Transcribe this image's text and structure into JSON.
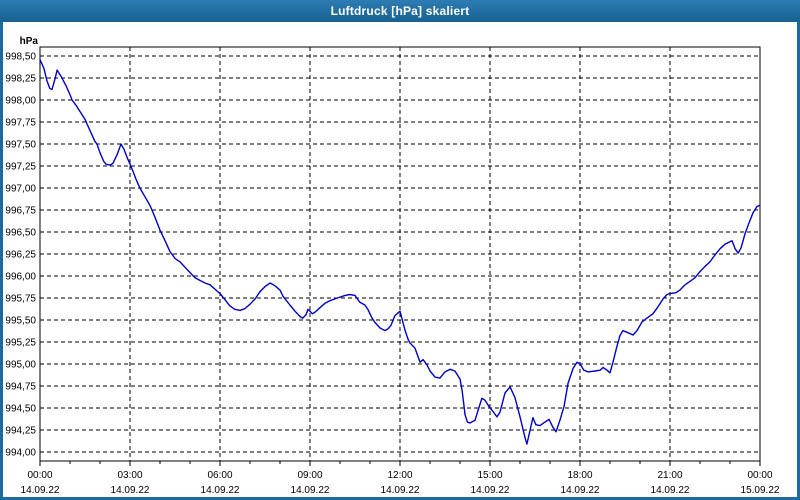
{
  "window": {
    "title": "Luftdruck [hPa] skaliert"
  },
  "colors": {
    "titlebar_blue": "#1d6a9e",
    "border_blue": "#1d6a9e",
    "plot_background": "#ffffff",
    "grid_color": "#000000",
    "line_color": "#0000c8",
    "text_color": "#000000",
    "title_text_color": "#ffffff"
  },
  "chart_data": {
    "type": "line",
    "title": "Luftdruck [hPa] skaliert",
    "unit_label": "hPa",
    "grid": "dashed",
    "legend": "none",
    "y_axis": {
      "min": 994.0,
      "max": 998.5,
      "step": 0.25,
      "tick_labels": [
        "998,50",
        "998,25",
        "998,00",
        "997,75",
        "997,50",
        "997,25",
        "997,00",
        "996,75",
        "996,50",
        "996,25",
        "996,00",
        "995,75",
        "995,50",
        "995,25",
        "995,00",
        "994,75",
        "994,50",
        "994,25",
        "994,00"
      ]
    },
    "x_axis": {
      "min_hours": 0,
      "max_hours": 24,
      "major_step_hours": 3,
      "minor_step_hours": 1,
      "tick_labels": [
        {
          "time": "00:00",
          "date": "14.09.22"
        },
        {
          "time": "03:00",
          "date": "14.09.22"
        },
        {
          "time": "06:00",
          "date": "14.09.22"
        },
        {
          "time": "09:00",
          "date": "14.09.22"
        },
        {
          "time": "12:00",
          "date": "14.09.22"
        },
        {
          "time": "15:00",
          "date": "14.09.22"
        },
        {
          "time": "18:00",
          "date": "14.09.22"
        },
        {
          "time": "21:00",
          "date": "14.09.22"
        },
        {
          "time": "00:00",
          "date": "15.09.22"
        }
      ]
    },
    "series": [
      {
        "name": "Luftdruck",
        "points": [
          [
            0.0,
            998.46
          ],
          [
            0.13,
            998.36
          ],
          [
            0.23,
            998.22
          ],
          [
            0.33,
            998.13
          ],
          [
            0.4,
            998.12
          ],
          [
            0.5,
            998.24
          ],
          [
            0.57,
            998.34
          ],
          [
            0.7,
            998.27
          ],
          [
            0.87,
            998.16
          ],
          [
            1.0,
            998.06
          ],
          [
            1.07,
            998.0
          ],
          [
            1.2,
            997.94
          ],
          [
            1.33,
            997.87
          ],
          [
            1.5,
            997.78
          ],
          [
            1.67,
            997.65
          ],
          [
            1.83,
            997.53
          ],
          [
            1.9,
            997.5
          ],
          [
            2.0,
            997.4
          ],
          [
            2.13,
            997.3
          ],
          [
            2.2,
            997.27
          ],
          [
            2.33,
            997.26
          ],
          [
            2.43,
            997.28
          ],
          [
            2.57,
            997.38
          ],
          [
            2.7,
            997.5
          ],
          [
            2.8,
            997.44
          ],
          [
            2.9,
            997.35
          ],
          [
            3.0,
            997.27
          ],
          [
            3.1,
            997.19
          ],
          [
            3.2,
            997.1
          ],
          [
            3.33,
            997.0
          ],
          [
            3.5,
            996.9
          ],
          [
            3.67,
            996.8
          ],
          [
            3.83,
            996.67
          ],
          [
            4.0,
            996.52
          ],
          [
            4.17,
            996.4
          ],
          [
            4.33,
            996.28
          ],
          [
            4.5,
            996.2
          ],
          [
            4.67,
            996.16
          ],
          [
            4.83,
            996.1
          ],
          [
            5.0,
            996.04
          ],
          [
            5.17,
            995.98
          ],
          [
            5.33,
            995.95
          ],
          [
            5.5,
            995.92
          ],
          [
            5.67,
            995.9
          ],
          [
            5.9,
            995.83
          ],
          [
            6.0,
            995.8
          ],
          [
            6.17,
            995.73
          ],
          [
            6.33,
            995.66
          ],
          [
            6.5,
            995.62
          ],
          [
            6.67,
            995.61
          ],
          [
            6.83,
            995.63
          ],
          [
            7.0,
            995.68
          ],
          [
            7.17,
            995.74
          ],
          [
            7.33,
            995.82
          ],
          [
            7.5,
            995.88
          ],
          [
            7.67,
            995.92
          ],
          [
            7.83,
            995.89
          ],
          [
            8.0,
            995.84
          ],
          [
            8.1,
            995.77
          ],
          [
            8.33,
            995.67
          ],
          [
            8.5,
            995.6
          ],
          [
            8.67,
            995.54
          ],
          [
            8.75,
            995.52
          ],
          [
            8.87,
            995.56
          ],
          [
            8.93,
            995.62
          ],
          [
            9.0,
            995.6
          ],
          [
            9.08,
            995.57
          ],
          [
            9.17,
            995.59
          ],
          [
            9.33,
            995.64
          ],
          [
            9.5,
            995.69
          ],
          [
            9.67,
            995.72
          ],
          [
            9.83,
            995.74
          ],
          [
            10.0,
            995.76
          ],
          [
            10.17,
            995.78
          ],
          [
            10.33,
            995.79
          ],
          [
            10.5,
            995.78
          ],
          [
            10.6,
            995.73
          ],
          [
            10.67,
            995.7
          ],
          [
            10.83,
            995.67
          ],
          [
            10.93,
            995.62
          ],
          [
            11.07,
            995.52
          ],
          [
            11.17,
            995.47
          ],
          [
            11.33,
            995.41
          ],
          [
            11.5,
            995.38
          ],
          [
            11.6,
            995.4
          ],
          [
            11.7,
            995.44
          ],
          [
            11.83,
            995.55
          ],
          [
            12.0,
            995.6
          ],
          [
            12.17,
            995.38
          ],
          [
            12.27,
            995.28
          ],
          [
            12.33,
            995.24
          ],
          [
            12.5,
            995.18
          ],
          [
            12.67,
            995.02
          ],
          [
            12.77,
            995.05
          ],
          [
            12.9,
            994.99
          ],
          [
            13.0,
            994.92
          ],
          [
            13.17,
            994.85
          ],
          [
            13.33,
            994.84
          ],
          [
            13.5,
            994.91
          ],
          [
            13.67,
            994.94
          ],
          [
            13.83,
            994.92
          ],
          [
            14.0,
            994.83
          ],
          [
            14.07,
            994.7
          ],
          [
            14.17,
            994.42
          ],
          [
            14.25,
            994.34
          ],
          [
            14.33,
            994.33
          ],
          [
            14.5,
            994.36
          ],
          [
            14.6,
            994.47
          ],
          [
            14.73,
            994.61
          ],
          [
            14.83,
            994.59
          ],
          [
            15.0,
            994.5
          ],
          [
            15.1,
            994.46
          ],
          [
            15.23,
            994.4
          ],
          [
            15.33,
            994.45
          ],
          [
            15.5,
            994.67
          ],
          [
            15.67,
            994.74
          ],
          [
            15.83,
            994.62
          ],
          [
            16.0,
            994.4
          ],
          [
            16.17,
            994.16
          ],
          [
            16.23,
            994.09
          ],
          [
            16.33,
            994.24
          ],
          [
            16.43,
            994.39
          ],
          [
            16.53,
            994.31
          ],
          [
            16.67,
            994.3
          ],
          [
            16.83,
            994.34
          ],
          [
            16.97,
            994.37
          ],
          [
            17.1,
            994.28
          ],
          [
            17.2,
            994.23
          ],
          [
            17.33,
            994.36
          ],
          [
            17.47,
            994.52
          ],
          [
            17.6,
            994.78
          ],
          [
            17.77,
            994.95
          ],
          [
            17.9,
            995.02
          ],
          [
            18.0,
            995.0
          ],
          [
            18.13,
            994.93
          ],
          [
            18.27,
            994.91
          ],
          [
            18.5,
            994.92
          ],
          [
            18.67,
            994.93
          ],
          [
            18.77,
            994.96
          ],
          [
            18.9,
            994.93
          ],
          [
            19.0,
            994.9
          ],
          [
            19.1,
            995.02
          ],
          [
            19.23,
            995.2
          ],
          [
            19.33,
            995.32
          ],
          [
            19.43,
            995.38
          ],
          [
            19.57,
            995.36
          ],
          [
            19.77,
            995.33
          ],
          [
            19.9,
            995.38
          ],
          [
            20.07,
            995.48
          ],
          [
            20.23,
            995.52
          ],
          [
            20.43,
            995.57
          ],
          [
            20.6,
            995.65
          ],
          [
            20.77,
            995.74
          ],
          [
            20.9,
            995.79
          ],
          [
            21.0,
            995.8
          ],
          [
            21.2,
            995.81
          ],
          [
            21.33,
            995.84
          ],
          [
            21.5,
            995.9
          ],
          [
            21.67,
            995.94
          ],
          [
            21.83,
            995.98
          ],
          [
            22.0,
            996.05
          ],
          [
            22.17,
            996.11
          ],
          [
            22.33,
            996.16
          ],
          [
            22.5,
            996.24
          ],
          [
            22.67,
            996.31
          ],
          [
            22.83,
            996.36
          ],
          [
            23.0,
            996.39
          ],
          [
            23.07,
            996.4
          ],
          [
            23.17,
            996.31
          ],
          [
            23.27,
            996.26
          ],
          [
            23.37,
            996.32
          ],
          [
            23.5,
            996.48
          ],
          [
            23.63,
            996.6
          ],
          [
            23.77,
            996.72
          ],
          [
            23.9,
            996.79
          ],
          [
            23.97,
            996.8
          ]
        ]
      }
    ]
  }
}
